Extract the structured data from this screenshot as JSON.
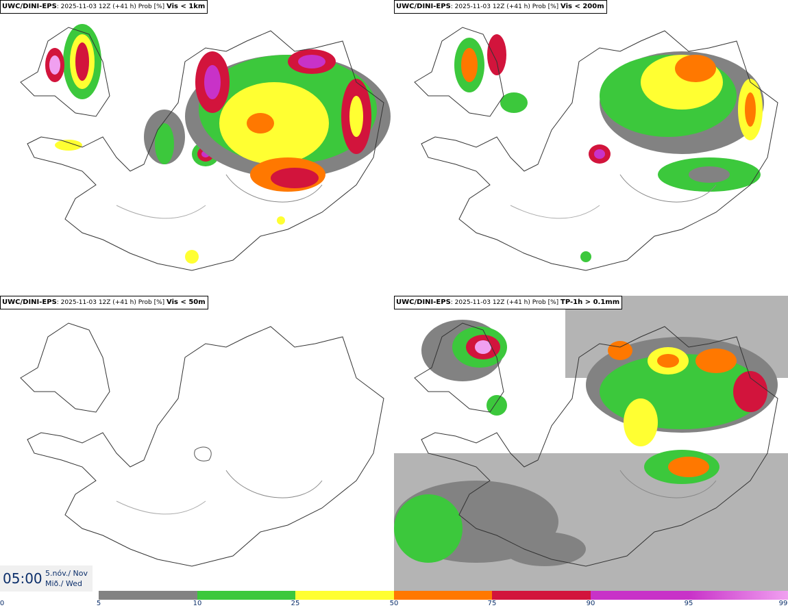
{
  "panels": [
    {
      "source": "UWC/DINI-EPS",
      "run": ": 2025-11-03 12Z (+41 h) Prob [%] ",
      "variable": "Vis < 1km"
    },
    {
      "source": "UWC/DINI-EPS",
      "run": ": 2025-11-03 12Z (+41 h) Prob [%] ",
      "variable": "Vis < 200m"
    },
    {
      "source": "UWC/DINI-EPS",
      "run": ": 2025-11-03 12Z (+41 h) Prob [%] ",
      "variable": "Vis < 50m"
    },
    {
      "source": "UWC/DINI-EPS",
      "run": ": 2025-11-03 12Z (+41 h) Prob [%] ",
      "variable": "TP-1h > 0.1mm"
    }
  ],
  "valid_time": {
    "time": "05:00",
    "date_line1": "5.nóv./ Nov",
    "date_line2": "Mið./ Wed"
  },
  "colorbar": {
    "ticks": [
      "0",
      "5",
      "10",
      "25",
      "50",
      "75",
      "90",
      "95",
      "99"
    ],
    "colors": [
      "#b4b4b4",
      "#828282",
      "#3cc83c",
      "#ffff32",
      "#ff7800",
      "#d2143c",
      "#c832c8",
      "#f0a0f0"
    ],
    "gradient_last": true
  }
}
